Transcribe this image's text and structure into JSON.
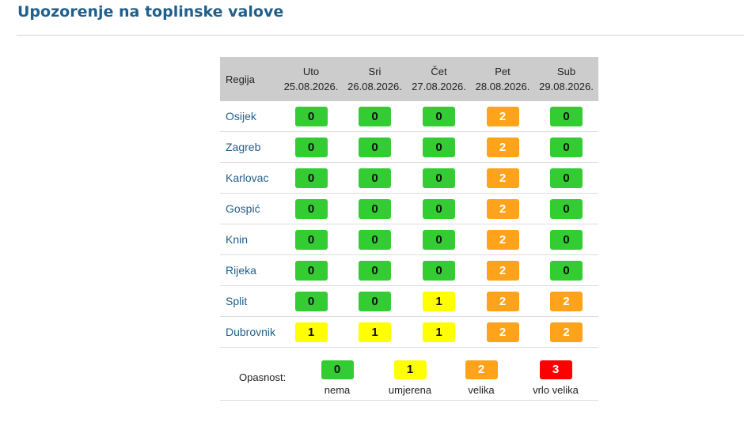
{
  "page": {
    "title": "Upozorenje na toplinske valove"
  },
  "table": {
    "region_header": "Regija",
    "days": [
      {
        "name": "Uto",
        "date": "25.08.2026."
      },
      {
        "name": "Sri",
        "date": "26.08.2026."
      },
      {
        "name": "Čet",
        "date": "27.08.2026."
      },
      {
        "name": "Pet",
        "date": "28.08.2026."
      },
      {
        "name": "Sub",
        "date": "29.08.2026."
      }
    ],
    "rows": [
      {
        "region": "Osijek",
        "levels": [
          "0",
          "0",
          "0",
          "2",
          "0"
        ]
      },
      {
        "region": "Zagreb",
        "levels": [
          "0",
          "0",
          "0",
          "2",
          "0"
        ]
      },
      {
        "region": "Karlovac",
        "levels": [
          "0",
          "0",
          "0",
          "2",
          "0"
        ]
      },
      {
        "region": "Gospić",
        "levels": [
          "0",
          "0",
          "0",
          "2",
          "0"
        ]
      },
      {
        "region": "Knin",
        "levels": [
          "0",
          "0",
          "0",
          "2",
          "0"
        ]
      },
      {
        "region": "Rijeka",
        "levels": [
          "0",
          "0",
          "0",
          "2",
          "0"
        ]
      },
      {
        "region": "Split",
        "levels": [
          "0",
          "0",
          "1",
          "2",
          "2"
        ]
      },
      {
        "region": "Dubrovnik",
        "levels": [
          "1",
          "1",
          "1",
          "2",
          "2"
        ]
      }
    ]
  },
  "legend": {
    "label": "Opasnost:",
    "items": [
      {
        "value": "0",
        "text": "nema"
      },
      {
        "value": "1",
        "text": "umjerena"
      },
      {
        "value": "2",
        "text": "velika"
      },
      {
        "value": "3",
        "text": "vrlo velika"
      }
    ]
  },
  "colors": {
    "level_0": "#33cc33",
    "level_1": "#ffff00",
    "level_2": "#ffa31a",
    "level_3": "#ff0000",
    "title": "#1f5f8b",
    "header_bg": "#cccccc"
  }
}
